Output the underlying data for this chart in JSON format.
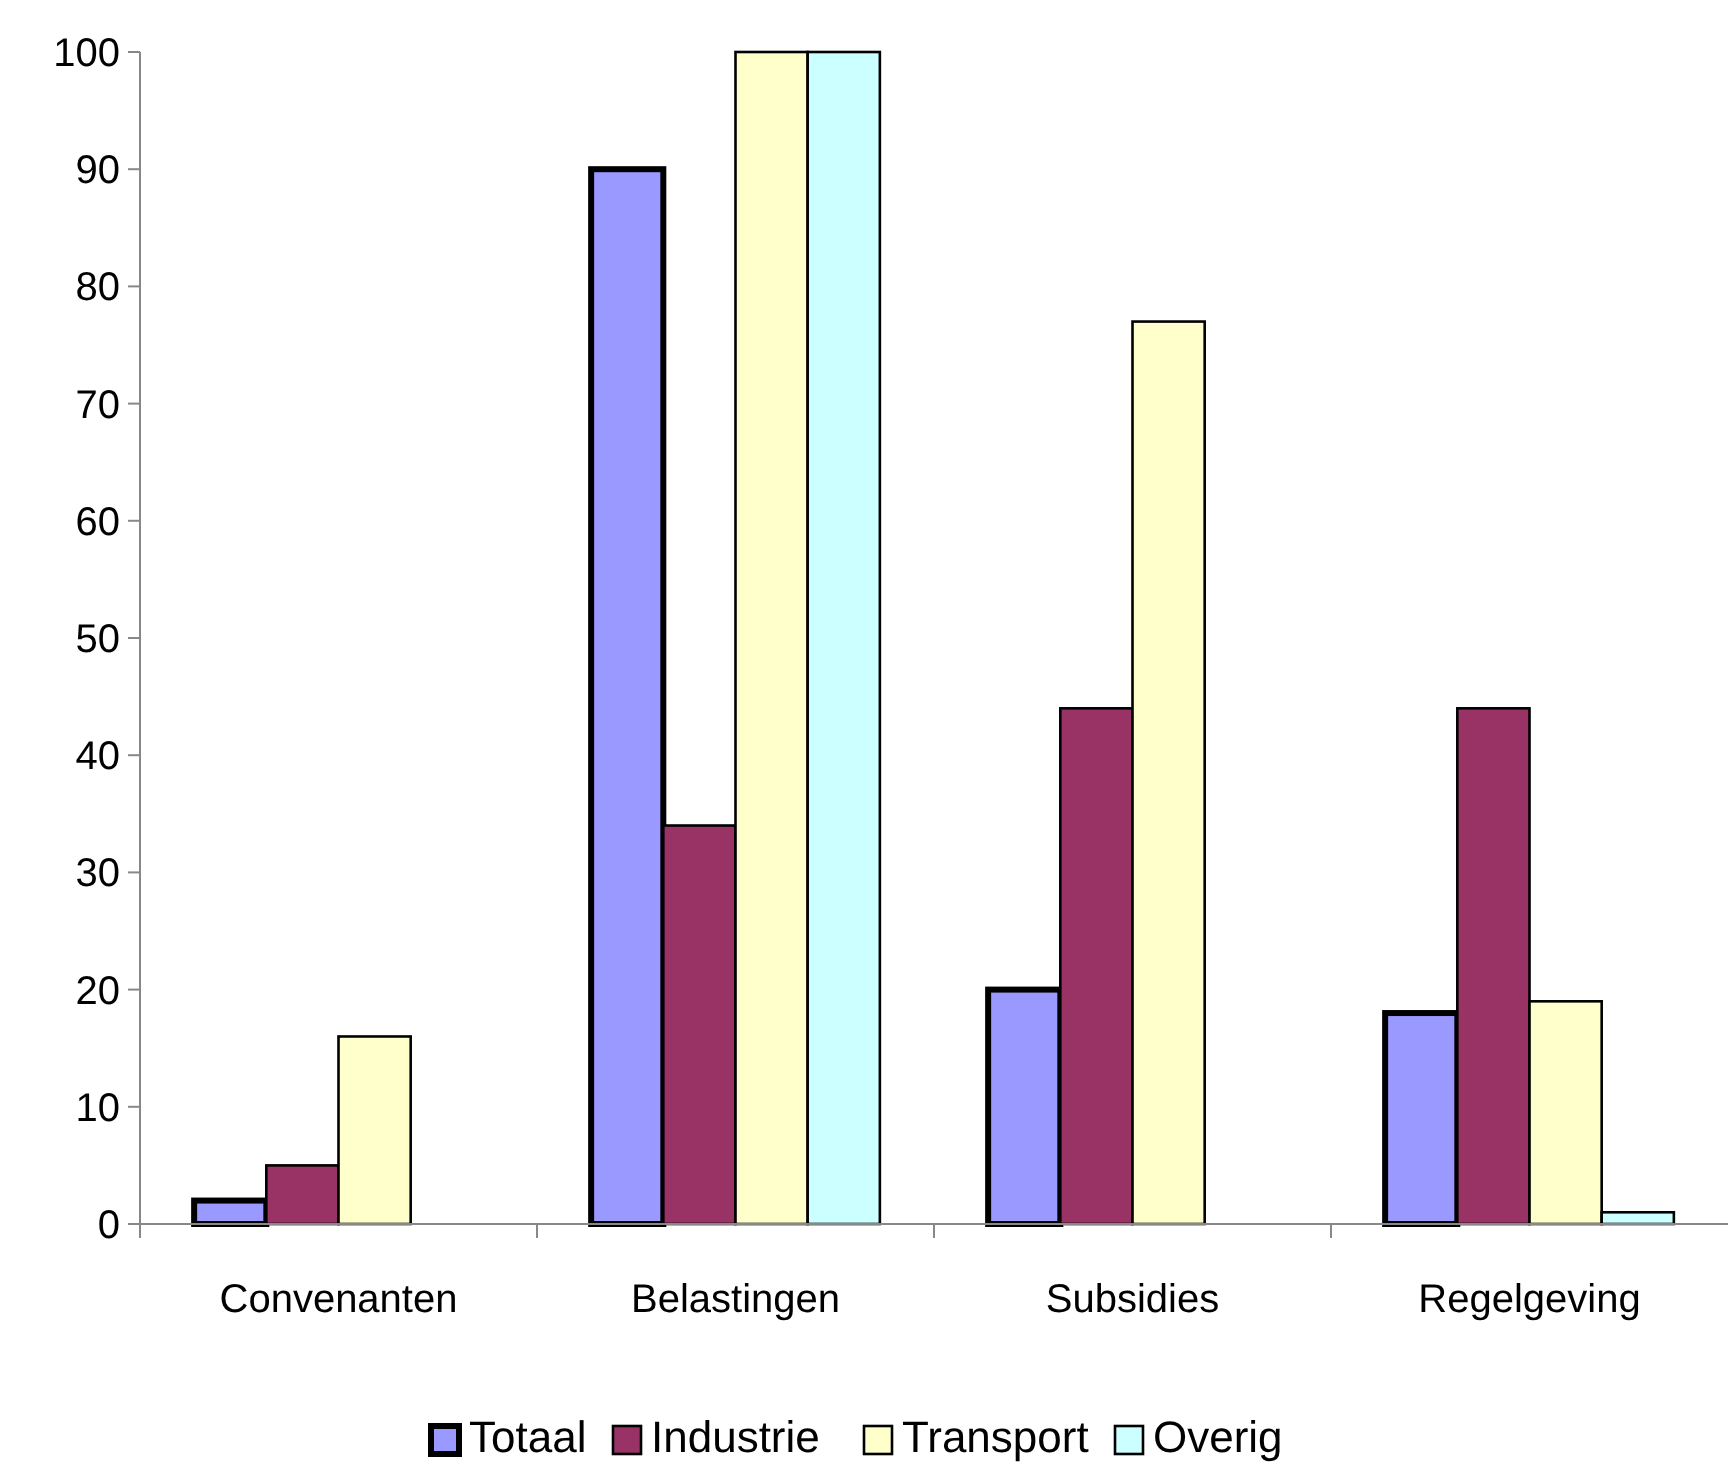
{
  "chart_data": {
    "type": "bar",
    "categories": [
      "Convenanten",
      "Belastingen",
      "Subsidies",
      "Regelgeving"
    ],
    "series": [
      {
        "name": "Totaal",
        "color": "#9999ff",
        "values": [
          2,
          90,
          20,
          18
        ]
      },
      {
        "name": "Industrie",
        "color": "#993366",
        "values": [
          5,
          34,
          44,
          44
        ]
      },
      {
        "name": "Transport",
        "color": "#ffffcc",
        "values": [
          16,
          100,
          77,
          19
        ]
      },
      {
        "name": "Overig",
        "color": "#ccffff",
        "values": [
          null,
          100,
          null,
          1
        ]
      }
    ],
    "ylim": [
      0,
      100
    ],
    "yticks": [
      0,
      10,
      20,
      30,
      40,
      50,
      60,
      70,
      80,
      90,
      100
    ],
    "grid": false,
    "legend": "bottom"
  }
}
